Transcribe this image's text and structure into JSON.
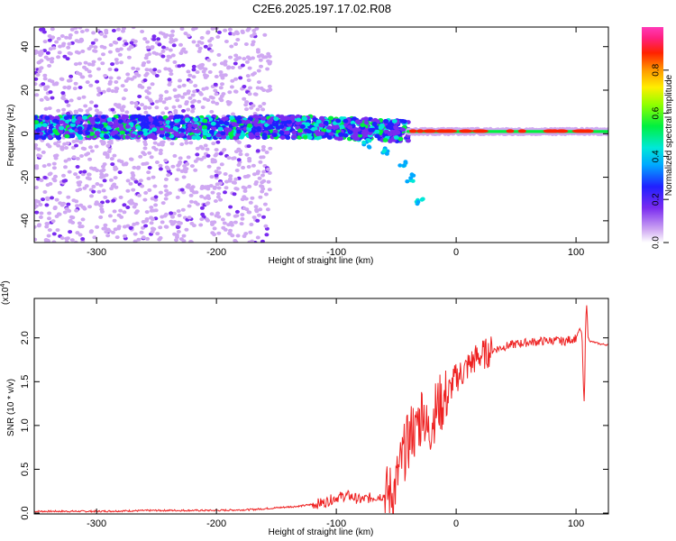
{
  "title": "C2E6.2025.197.17.02.R08",
  "colors": {
    "snr_line": "#ee2222",
    "axis": "#000000"
  },
  "chart_data": [
    {
      "type": "heatmap",
      "xlabel": "Height of straight line (km)",
      "ylabel": "Frequency (Hz)",
      "xlim": [
        -352,
        127
      ],
      "ylim": [
        -50,
        49
      ],
      "xticks": [
        -300,
        -200,
        -100,
        0,
        100
      ],
      "yticks": [
        -40,
        -20,
        0,
        20,
        40
      ],
      "grid": false,
      "colorbar": {
        "label": "Normalized spectral amplitude",
        "range": [
          0,
          1
        ],
        "ticks": [
          "0.0",
          "0.2",
          "0.4",
          "0.6",
          "0.8"
        ],
        "colormap": "rainbow (purple to magenta)"
      },
      "features": {
        "band_center_hz": 3,
        "band_halfwidth_hz": 5,
        "scatter_region_km": [
          -352,
          -155
        ],
        "branch_points": [
          [
            -75,
            -5
          ],
          [
            -60,
            -8
          ],
          [
            -45,
            -14
          ],
          [
            -38,
            -20
          ],
          [
            -30,
            -31
          ]
        ]
      }
    },
    {
      "type": "line",
      "xlabel": "Height of straight line (km)",
      "ylabel": "SNR (10 * v/v)",
      "multiplier": "(x10",
      "exponent": "4",
      "xlim": [
        -352,
        127
      ],
      "ylim": [
        -0.01,
        2.45
      ],
      "xticks": [
        -300,
        -200,
        -100,
        0,
        100
      ],
      "yticks": [
        "0.0",
        "0.5",
        "1.0",
        "1.5",
        "2.0"
      ],
      "ytick_values": [
        0,
        0.5,
        1.0,
        1.5,
        2.0
      ],
      "grid": false,
      "series": [
        {
          "x": [
            -352,
            -300,
            -250,
            -200,
            -170,
            -150,
            -130,
            -110,
            -100,
            -90,
            -80,
            -70,
            -60,
            -52,
            -48,
            -45,
            -42,
            -40,
            -38,
            -36,
            -34,
            -32,
            -30,
            -28,
            -26,
            -24,
            -22,
            -20,
            -18,
            -16,
            -14,
            -12,
            -10,
            -8,
            -6,
            -4,
            -2,
            0,
            5,
            10,
            15,
            20,
            25,
            30,
            35,
            40,
            50,
            60,
            70,
            80,
            90,
            95,
            100,
            103,
            105,
            106,
            107,
            108,
            109,
            110,
            112,
            115,
            120,
            127
          ],
          "y": [
            0.02,
            0.02,
            0.03,
            0.03,
            0.04,
            0.06,
            0.08,
            0.12,
            0.18,
            0.2,
            0.15,
            0.18,
            0.2,
            0.25,
            0.45,
            0.6,
            0.75,
            0.8,
            0.9,
            1.0,
            0.85,
            1.1,
            1.0,
            1.3,
            1.05,
            0.9,
            0.95,
            1.1,
            1.15,
            1.2,
            1.25,
            1.25,
            1.3,
            1.35,
            1.3,
            1.45,
            1.5,
            1.55,
            1.6,
            1.68,
            1.75,
            1.8,
            1.82,
            1.86,
            1.88,
            1.9,
            1.93,
            1.95,
            1.96,
            1.97,
            1.96,
            1.98,
            2.0,
            2.1,
            2.05,
            1.5,
            1.2,
            2.2,
            2.4,
            2.0,
            1.96,
            1.95,
            1.93,
            1.92
          ]
        }
      ]
    }
  ]
}
